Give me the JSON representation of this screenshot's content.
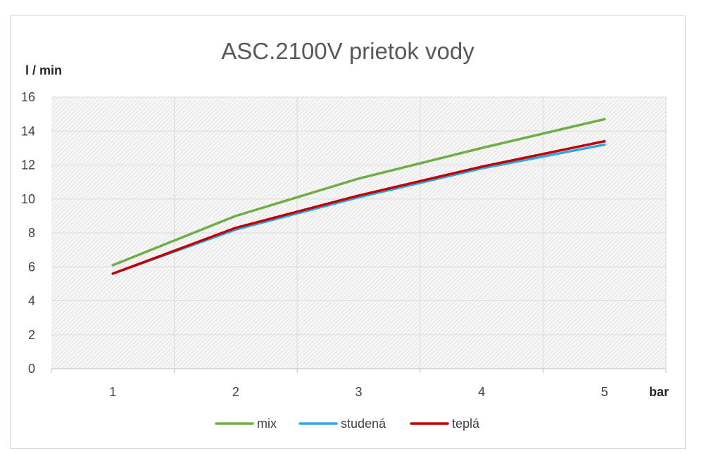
{
  "chart_data": {
    "type": "line",
    "title": "ASC.2100V prietok vody",
    "ylabel": "l / min",
    "xlabel": "bar",
    "categories": [
      "1",
      "2",
      "3",
      "4",
      "5"
    ],
    "ylim": [
      0,
      16
    ],
    "yticks": [
      "0",
      "2",
      "4",
      "6",
      "8",
      "10",
      "12",
      "14",
      "16"
    ],
    "grid": true,
    "legend_position": "bottom",
    "series": [
      {
        "name": "mix",
        "color": "#70ad47",
        "values": [
          6.1,
          9.0,
          11.2,
          13.0,
          14.7
        ]
      },
      {
        "name": "studená",
        "color": "#2ea8e0",
        "values": [
          5.6,
          8.2,
          10.1,
          11.8,
          13.2
        ]
      },
      {
        "name": "teplá",
        "color": "#c00000",
        "values": [
          5.6,
          8.3,
          10.2,
          11.9,
          13.4
        ]
      }
    ]
  }
}
